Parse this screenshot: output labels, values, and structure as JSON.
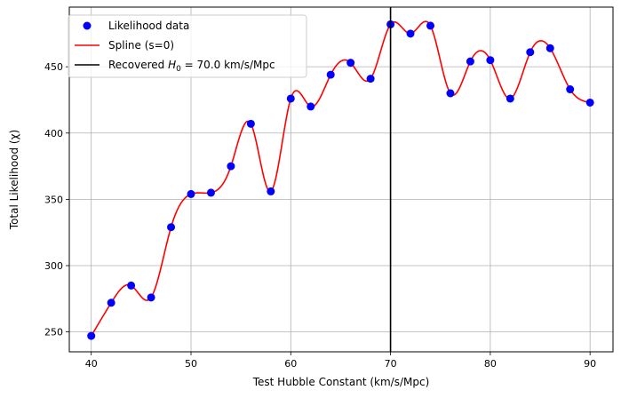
{
  "chart_data": {
    "type": "scatter",
    "xlabel": "Test Hubble Constant (km/s/Mpc)",
    "ylabel": "Total Likelihood (χ)",
    "xlim": [
      37.8,
      92.3
    ],
    "ylim": [
      235,
      495
    ],
    "xticks": [
      40,
      50,
      60,
      70,
      80,
      90
    ],
    "yticks": [
      250,
      300,
      350,
      400,
      450
    ],
    "grid": true,
    "legend_position": "top-left",
    "series": [
      {
        "name": "Likelihood data",
        "kind": "scatter",
        "color": "#0000ff",
        "x": [
          40,
          42,
          44,
          46,
          48,
          50,
          52,
          54,
          56,
          58,
          60,
          62,
          64,
          66,
          68,
          70,
          72,
          74,
          76,
          78,
          80,
          82,
          84,
          86,
          88,
          90
        ],
        "y": [
          247,
          272,
          285,
          276,
          329,
          354,
          355,
          375,
          407,
          356,
          426,
          420,
          444,
          453,
          441,
          482,
          475,
          481,
          430,
          454,
          455,
          426,
          461,
          464,
          433,
          423
        ]
      },
      {
        "name": "Spline (s=0)",
        "kind": "line",
        "color": "#ff0000"
      },
      {
        "name": "Recovered H0 = 70.0 km/s/Mpc",
        "name_prefix": "Recovered ",
        "name_symbol": "H",
        "name_subscript": "0",
        "name_suffix": " = 70.0 km/s/Mpc",
        "kind": "vline",
        "color": "#000000",
        "x": 70.0
      }
    ]
  }
}
